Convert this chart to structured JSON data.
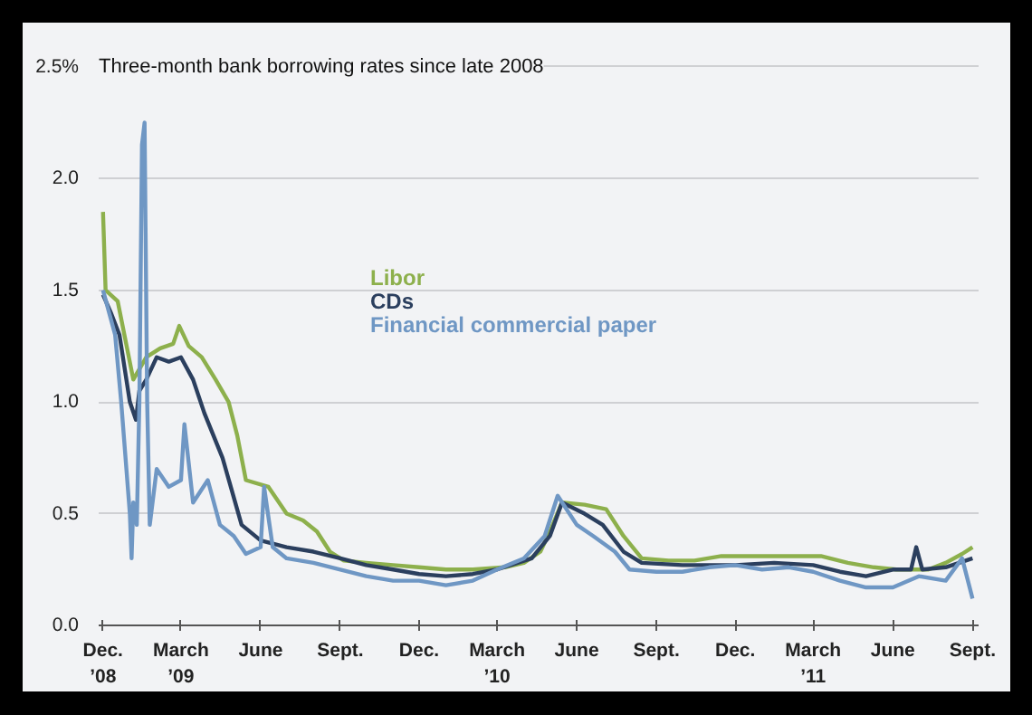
{
  "chart_data": {
    "type": "line",
    "title": "Three-month bank borrowing rates since late 2008",
    "xlim": [
      "2008-11-26",
      "2011-09-08"
    ],
    "xticks": [
      {
        "value": "2008-12-01",
        "label": "Dec.\n’08"
      },
      {
        "value": "2009-03-01",
        "label": "March\n’09"
      },
      {
        "value": "2009-06-01",
        "label": "June"
      },
      {
        "value": "2009-09-01",
        "label": "Sept."
      },
      {
        "value": "2009-12-01",
        "label": "Dec."
      },
      {
        "value": "2010-03-01",
        "label": "March\n’10"
      },
      {
        "value": "2010-06-01",
        "label": "June"
      },
      {
        "value": "2010-09-01",
        "label": "Sept."
      },
      {
        "value": "2010-12-01",
        "label": "Dec."
      },
      {
        "value": "2011-03-01",
        "label": "March\n’11"
      },
      {
        "value": "2011-06-01",
        "label": "June"
      },
      {
        "value": "2011-09-01",
        "label": "Sept."
      }
    ],
    "ylim": [
      0,
      2.6
    ],
    "yticks": [
      {
        "value": 0,
        "label": "0.0"
      },
      {
        "value": 0.5,
        "label": "0.5"
      },
      {
        "value": 1,
        "label": "1.0"
      },
      {
        "value": 1.5,
        "label": "1.5"
      },
      {
        "value": 2,
        "label": "2.0"
      },
      {
        "value": 2.5,
        "label": "2.5%"
      }
    ],
    "grid": "y",
    "legend": "center",
    "line_style": "solid",
    "marker": "none",
    "series": [
      {
        "name": "Libor",
        "color": "#8db04c",
        "x": [
          "2008-12-01",
          "2008-12-04",
          "2008-12-18",
          "2009-01-05",
          "2009-01-20",
          "2009-02-05",
          "2009-02-20",
          "2009-02-27",
          "2009-03-10",
          "2009-03-25",
          "2009-04-10",
          "2009-04-25",
          "2009-05-05",
          "2009-05-15",
          "2009-06-10",
          "2009-07-01",
          "2009-07-20",
          "2009-08-05",
          "2009-08-20",
          "2009-09-05",
          "2009-10-01",
          "2009-11-01",
          "2009-12-01",
          "2010-01-01",
          "2010-02-01",
          "2010-03-10",
          "2010-04-01",
          "2010-04-20",
          "2010-05-01",
          "2010-05-15",
          "2010-06-10",
          "2010-07-05",
          "2010-07-25",
          "2010-08-15",
          "2010-09-15",
          "2010-10-15",
          "2010-11-15",
          "2010-12-15",
          "2011-01-15",
          "2011-02-15",
          "2011-03-10",
          "2011-04-10",
          "2011-05-10",
          "2011-06-05",
          "2011-07-12",
          "2011-08-01",
          "2011-08-20",
          "2011-09-01"
        ],
        "values": [
          1.85,
          1.5,
          1.45,
          1.1,
          1.2,
          1.24,
          1.26,
          1.34,
          1.25,
          1.2,
          1.1,
          1.0,
          0.85,
          0.65,
          0.62,
          0.5,
          0.47,
          0.42,
          0.33,
          0.29,
          0.28,
          0.27,
          0.26,
          0.25,
          0.25,
          0.26,
          0.28,
          0.33,
          0.42,
          0.55,
          0.54,
          0.52,
          0.4,
          0.3,
          0.29,
          0.29,
          0.31,
          0.31,
          0.31,
          0.31,
          0.31,
          0.28,
          0.26,
          0.25,
          0.25,
          0.28,
          0.32,
          0.35
        ]
      },
      {
        "name": "CDs",
        "color": "#2b3f5e",
        "x": [
          "2008-12-01",
          "2008-12-10",
          "2008-12-20",
          "2009-01-01",
          "2009-01-08",
          "2009-01-12",
          "2009-01-20",
          "2009-02-01",
          "2009-02-15",
          "2009-03-01",
          "2009-03-15",
          "2009-03-28",
          "2009-04-18",
          "2009-05-10",
          "2009-06-01",
          "2009-07-01",
          "2009-08-01",
          "2009-09-01",
          "2009-10-01",
          "2009-11-01",
          "2009-12-01",
          "2010-01-01",
          "2010-02-01",
          "2010-03-01",
          "2010-04-10",
          "2010-05-01",
          "2010-05-15",
          "2010-06-10",
          "2010-07-01",
          "2010-07-25",
          "2010-08-15",
          "2010-10-01",
          "2010-12-01",
          "2011-01-15",
          "2011-03-01",
          "2011-04-01",
          "2011-05-01",
          "2011-06-01",
          "2011-06-22",
          "2011-06-28",
          "2011-07-05",
          "2011-08-01",
          "2011-09-01"
        ],
        "values": [
          1.48,
          1.4,
          1.3,
          1.0,
          0.92,
          1.05,
          1.1,
          1.2,
          1.18,
          1.2,
          1.1,
          0.95,
          0.75,
          0.45,
          0.38,
          0.35,
          0.33,
          0.3,
          0.27,
          0.25,
          0.23,
          0.22,
          0.23,
          0.25,
          0.3,
          0.4,
          0.55,
          0.5,
          0.45,
          0.33,
          0.28,
          0.27,
          0.27,
          0.28,
          0.27,
          0.24,
          0.22,
          0.25,
          0.25,
          0.35,
          0.25,
          0.26,
          0.3
        ]
      },
      {
        "name": "Financial commercial paper",
        "color": "#6f97c4",
        "x": [
          "2008-12-01",
          "2008-12-15",
          "2008-12-22",
          "2008-12-28",
          "2009-01-01",
          "2009-01-03",
          "2009-01-05",
          "2009-01-09",
          "2009-01-12",
          "2009-01-15",
          "2009-01-18",
          "2009-01-21",
          "2009-01-24",
          "2009-02-01",
          "2009-02-15",
          "2009-03-01",
          "2009-03-05",
          "2009-03-15",
          "2009-04-01",
          "2009-04-15",
          "2009-05-01",
          "2009-05-15",
          "2009-06-01",
          "2009-06-05",
          "2009-06-15",
          "2009-07-01",
          "2009-08-01",
          "2009-09-01",
          "2009-10-01",
          "2009-11-01",
          "2009-12-01",
          "2010-01-01",
          "2010-02-01",
          "2010-03-01",
          "2010-04-01",
          "2010-04-25",
          "2010-05-10",
          "2010-06-01",
          "2010-06-20",
          "2010-07-15",
          "2010-08-01",
          "2010-09-01",
          "2010-10-01",
          "2010-11-01",
          "2010-12-01",
          "2011-01-01",
          "2011-02-01",
          "2011-03-01",
          "2011-04-01",
          "2011-05-01",
          "2011-06-01",
          "2011-07-01",
          "2011-08-01",
          "2011-08-20",
          "2011-09-01"
        ],
        "values": [
          1.5,
          1.3,
          1.0,
          0.7,
          0.5,
          0.3,
          0.55,
          0.45,
          1.0,
          2.15,
          2.25,
          1.0,
          0.45,
          0.7,
          0.62,
          0.65,
          0.9,
          0.55,
          0.65,
          0.45,
          0.4,
          0.32,
          0.35,
          0.62,
          0.35,
          0.3,
          0.28,
          0.25,
          0.22,
          0.2,
          0.2,
          0.18,
          0.2,
          0.25,
          0.3,
          0.4,
          0.58,
          0.45,
          0.4,
          0.33,
          0.25,
          0.24,
          0.24,
          0.26,
          0.27,
          0.25,
          0.26,
          0.24,
          0.2,
          0.17,
          0.17,
          0.22,
          0.2,
          0.3,
          0.12
        ]
      }
    ]
  }
}
